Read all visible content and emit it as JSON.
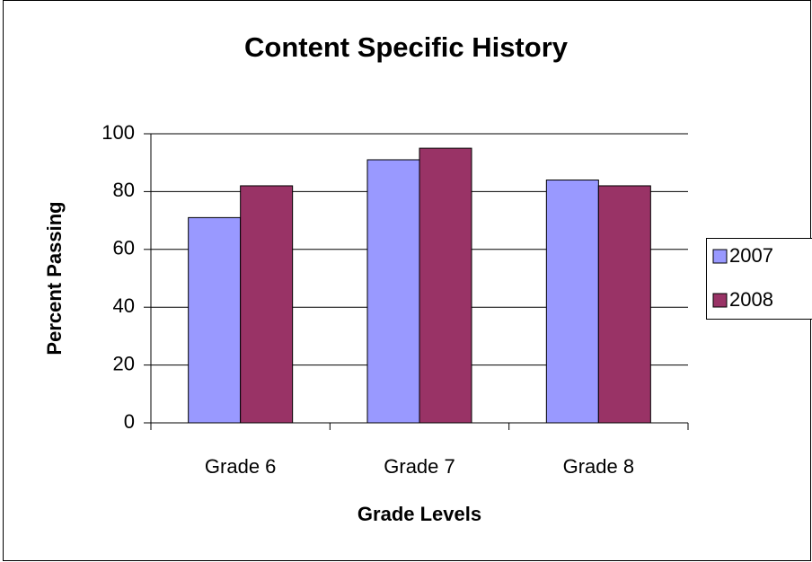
{
  "chart_data": {
    "type": "bar",
    "title": "Content Specific History",
    "x_label": "Grade Levels",
    "y_label": "Percent Passing",
    "categories": [
      "Grade 6",
      "Grade 7",
      "Grade 8"
    ],
    "series": [
      {
        "name": "2007",
        "color": "#9999ff",
        "values": [
          71,
          91,
          84
        ]
      },
      {
        "name": "2008",
        "color": "#993366",
        "values": [
          82,
          95,
          82
        ]
      }
    ],
    "ylim": [
      0,
      100
    ],
    "yticks": [
      0,
      20,
      40,
      60,
      80,
      100
    ],
    "grid": true,
    "legend": "right"
  }
}
